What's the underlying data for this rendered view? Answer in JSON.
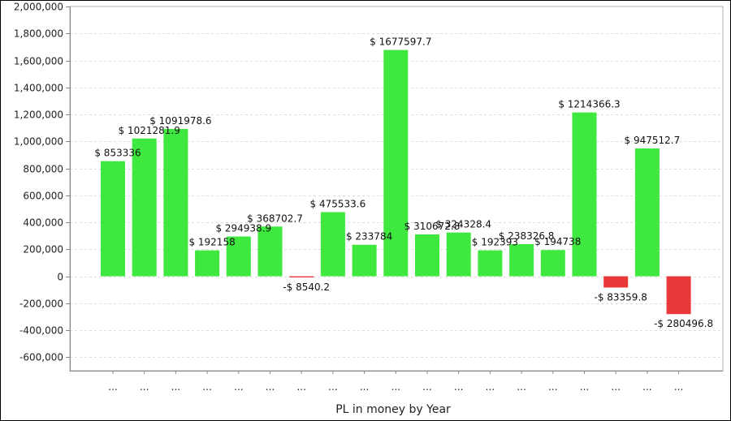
{
  "chart_data": {
    "type": "bar",
    "title": "",
    "xlabel": "PL in money by Year",
    "ylabel": "",
    "ylim": [
      -700000,
      2000000
    ],
    "yticks": [
      2000000,
      1800000,
      1600000,
      1400000,
      1200000,
      1000000,
      800000,
      600000,
      400000,
      200000,
      0,
      -200000,
      -400000,
      -600000
    ],
    "ytick_labels": [
      "2,000,000",
      "1,800,000",
      "1,600,000",
      "1,400,000",
      "1,200,000",
      "1,000,000",
      "800,000",
      "600,000",
      "400,000",
      "200,000",
      "0",
      "-200,000",
      "-400,000",
      "-600,000"
    ],
    "grid": true,
    "legend": "none",
    "positive_color": "#3ee83e",
    "negative_color": "#e83838",
    "categories": [
      "...",
      "...",
      "...",
      "...",
      "...",
      "...",
      "...",
      "...",
      "...",
      "...",
      "...",
      "...",
      "...",
      "...",
      "...",
      "...",
      "...",
      "...",
      "..."
    ],
    "values": [
      853336,
      1021281.9,
      1091978.6,
      192158,
      294938.9,
      368702.7,
      -8540.2,
      475533.6,
      233784,
      1677597.7,
      310672.8,
      324328.4,
      192393,
      238326.8,
      194738,
      1214366.3,
      -83359.8,
      947512.7,
      -280496.8
    ],
    "data_labels": [
      "$ 853336",
      "$ 1021281.9",
      "$ 1091978.6",
      "$ 192158",
      "$ 294938.9",
      "$ 368702.7",
      "-$ 8540.2",
      "$ 475533.6",
      "$ 233784",
      "$ 1677597.7",
      "$ 310672.8",
      "$ 324328.4",
      "$ 192393",
      "$ 238326.8",
      "$ 194738",
      "$ 1214366.3",
      "-$ 83359.8",
      "$ 947512.7",
      "-$ 280496.8"
    ]
  }
}
